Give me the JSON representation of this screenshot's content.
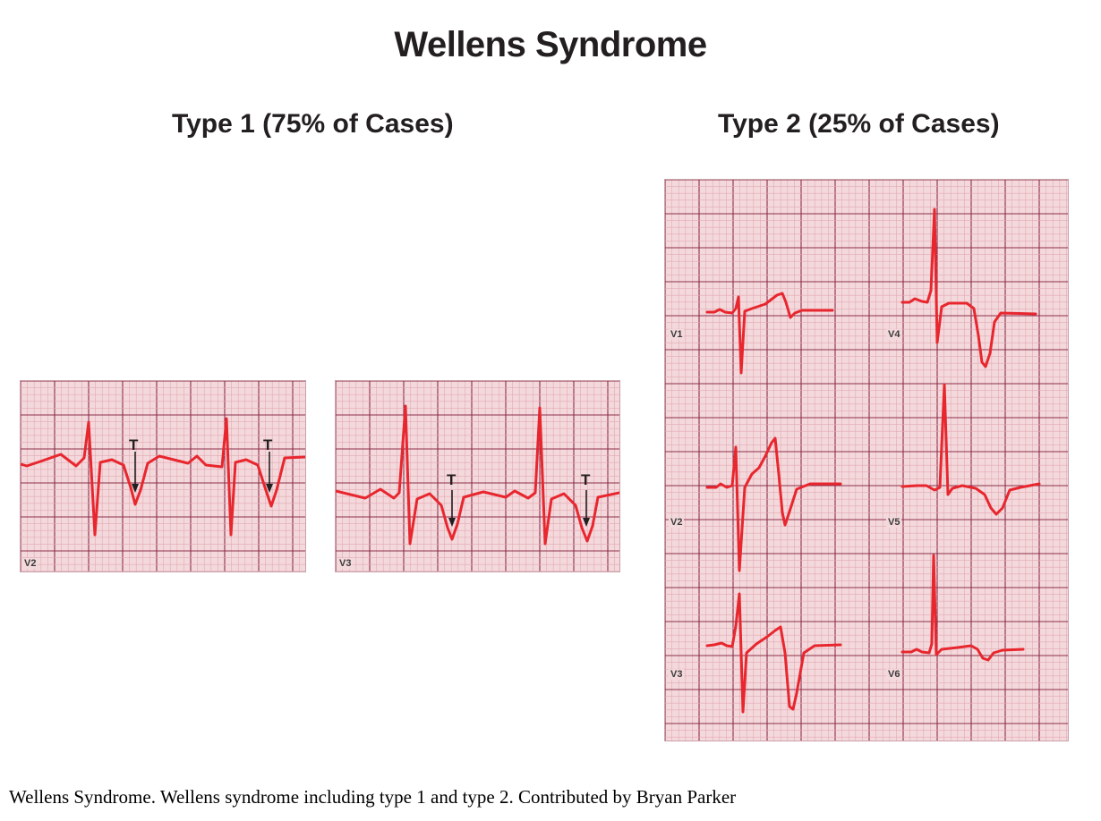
{
  "title": "Wellens Syndrome",
  "type1": {
    "heading": "Type 1 (75% of Cases)",
    "strips": [
      {
        "lead": "V2",
        "marker": "T"
      },
      {
        "lead": "V3",
        "marker": "T"
      }
    ]
  },
  "type2": {
    "heading": "Type 2 (25% of Cases)",
    "leads": [
      "V1",
      "V4",
      "V2",
      "V5",
      "V3",
      "V6"
    ]
  },
  "caption": "Wellens Syndrome. Wellens syndrome including type 1 and type 2. Contributed by Bryan Parker",
  "colors": {
    "grid_bg": "#f4d9dc",
    "grid_minor": "#e2a9b2",
    "grid_major": "#8c2e4a",
    "trace": "#e8262e",
    "text": "#231f20"
  }
}
